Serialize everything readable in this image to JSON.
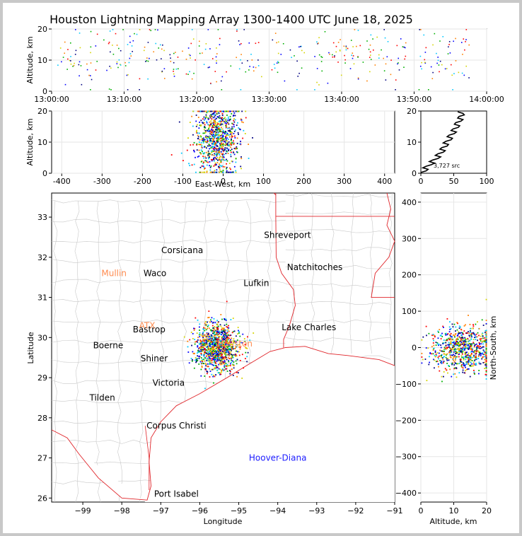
{
  "title": "Houston Lightning Mapping Array 1300-1400 UTC June 18, 2025",
  "colors": {
    "page_bg": "#c8c8c8",
    "panel_bg": "#ffffff",
    "axis": "#000000",
    "grid": "#e6e6e6",
    "county_lines": "#c8c8c8",
    "state_coast_lines": "#e0252a",
    "source_colors": [
      "#0000ff",
      "#00c8ff",
      "#00b000",
      "#d4d400",
      "#ff8000",
      "#ff0000",
      "#000080"
    ],
    "station_label": "#ff8c50",
    "offshore_label": "#1c1cff"
  },
  "chart_data": [
    {
      "id": "time_altitude",
      "type": "scatter",
      "xlabel": "",
      "ylabel": "Altitude, km",
      "xlim": [
        "13:00:00",
        "14:00:00"
      ],
      "ylim": [
        0,
        20
      ],
      "xticks": [
        "13:00:00",
        "13:10:00",
        "13:20:00",
        "13:30:00",
        "13:40:00",
        "13:50:00",
        "14:00:00"
      ],
      "yticks": [
        0,
        10,
        20
      ],
      "activity_bursts_minutes": [
        2,
        3.5,
        5.5,
        8,
        9.5,
        11,
        13,
        15,
        17,
        19,
        21.5,
        23,
        26,
        28,
        31,
        34,
        36.5,
        38.5,
        40.5,
        42,
        44,
        46,
        48,
        51,
        53,
        55,
        57
      ]
    },
    {
      "id": "east_west_altitude",
      "type": "scatter",
      "xlabel": "East-West, km",
      "ylabel": "Altitude, km",
      "xlim": [
        -425,
        425
      ],
      "ylim": [
        0,
        20
      ],
      "xticks": [
        -400,
        -300,
        -200,
        -100,
        0,
        100,
        200,
        300,
        400
      ],
      "yticks": [
        0,
        10,
        20
      ],
      "cluster": {
        "ew_center_km": -15,
        "ew_spread_km": 28,
        "alt_center_km": 11,
        "alt_spread_km": 6
      }
    },
    {
      "id": "altitude_histogram",
      "type": "line",
      "xlim": [
        0,
        100
      ],
      "ylim": [
        0,
        20
      ],
      "xticks": [
        0,
        50,
        100
      ],
      "yticks": [
        0,
        10,
        20
      ],
      "annotation": "3,727 src",
      "profile": [
        {
          "alt_km": 0.5,
          "count": 4
        },
        {
          "alt_km": 1.5,
          "count": 7
        },
        {
          "alt_km": 2.5,
          "count": 12
        },
        {
          "alt_km": 3.5,
          "count": 17
        },
        {
          "alt_km": 4.5,
          "count": 22
        },
        {
          "alt_km": 5.5,
          "count": 26
        },
        {
          "alt_km": 6.5,
          "count": 30
        },
        {
          "alt_km": 7.5,
          "count": 33
        },
        {
          "alt_km": 8.5,
          "count": 36
        },
        {
          "alt_km": 9.5,
          "count": 38
        },
        {
          "alt_km": 10.5,
          "count": 42
        },
        {
          "alt_km": 11.5,
          "count": 44
        },
        {
          "alt_km": 12.5,
          "count": 47
        },
        {
          "alt_km": 13.5,
          "count": 50
        },
        {
          "alt_km": 14.5,
          "count": 53
        },
        {
          "alt_km": 15.5,
          "count": 55
        },
        {
          "alt_km": 16.5,
          "count": 57
        },
        {
          "alt_km": 17.5,
          "count": 60
        },
        {
          "alt_km": 18.5,
          "count": 62
        },
        {
          "alt_km": 19.5,
          "count": 60
        }
      ]
    },
    {
      "id": "plan_view_map",
      "type": "scatter",
      "xlabel": "Longitude",
      "ylabel": "Latitude",
      "xlim": [
        -99.8,
        -91
      ],
      "ylim": [
        25.9,
        33.6
      ],
      "xticks": [
        -99,
        -98,
        -97,
        -96,
        -95,
        -94,
        -93,
        -92,
        -91
      ],
      "yticks": [
        26,
        27,
        28,
        29,
        30,
        31,
        32,
        33
      ],
      "cluster": {
        "lon_center": -95.55,
        "lon_spread": 0.28,
        "lat_center": 29.75,
        "lat_spread": 0.3
      },
      "cities": [
        {
          "name": "Shreveport",
          "lon": -93.75,
          "lat": 32.55
        },
        {
          "name": "Corsicana",
          "lon": -96.45,
          "lat": 32.17
        },
        {
          "name": "Natchitoches",
          "lon": -93.05,
          "lat": 31.75
        },
        {
          "name": "Waco",
          "lon": -97.15,
          "lat": 31.6
        },
        {
          "name": "Lufkin",
          "lon": -94.55,
          "lat": 31.35
        },
        {
          "name": "Lake Charles",
          "lon": -93.2,
          "lat": 30.25
        },
        {
          "name": "Bastrop",
          "lon": -97.3,
          "lat": 30.2
        },
        {
          "name": "Boerne",
          "lon": -98.35,
          "lat": 29.8
        },
        {
          "name": "Shiner",
          "lon": -97.17,
          "lat": 29.48
        },
        {
          "name": "Victoria",
          "lon": -96.8,
          "lat": 28.87
        },
        {
          "name": "Tilden",
          "lon": -98.5,
          "lat": 28.5
        },
        {
          "name": "Corpus Christi",
          "lon": -96.6,
          "lat": 27.8
        },
        {
          "name": "Port Isabel",
          "lon": -96.6,
          "lat": 26.1
        }
      ],
      "stations": [
        {
          "name": "Mullin",
          "lon": -98.2,
          "lat": 31.6
        },
        {
          "name": "ATX",
          "lon": -97.35,
          "lat": 30.3
        },
        {
          "name": "Houston",
          "lon": -95.1,
          "lat": 29.85
        }
      ],
      "offshore_label": {
        "name": "Hoover-Diana",
        "lon": -94.0,
        "lat": 27.0
      }
    },
    {
      "id": "altitude_north_south",
      "type": "scatter",
      "xlabel": "Altitude, km",
      "ylabel": "North-South, km",
      "xlim": [
        0,
        20
      ],
      "ylim": [
        -425,
        425
      ],
      "xticks": [
        0,
        10,
        20
      ],
      "yticks": [
        -400,
        -300,
        -200,
        -100,
        0,
        100,
        200,
        300,
        400
      ],
      "cluster": {
        "ns_center_km": -5,
        "ns_spread_km": 32,
        "alt_center_km": 13,
        "alt_spread_km": 5
      }
    }
  ]
}
